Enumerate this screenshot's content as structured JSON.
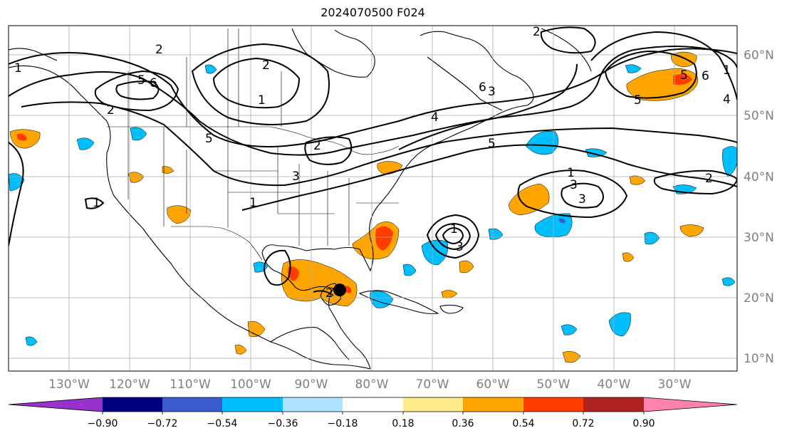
{
  "title": "2024070500 F024",
  "map": {
    "projection": "cylindrical",
    "lon_range": [
      -145,
      -24
    ],
    "lat_range": [
      7.5,
      65
    ],
    "lon_ticks": [
      "130°W",
      "120°W",
      "110°W",
      "100°W",
      "90°W",
      "80°W",
      "70°W",
      "60°W",
      "50°W",
      "40°W",
      "30°W"
    ],
    "lat_ticks": [
      "60°N",
      "50°N",
      "40°N",
      "30°N",
      "20°N",
      "10°N"
    ],
    "grid": true,
    "marker": {
      "type": "dot",
      "lon": -90,
      "lat": 21,
      "color": "#000000"
    },
    "contour_labels": [
      "1",
      "2",
      "5",
      "6",
      "2",
      "1",
      "1",
      "5",
      "2",
      "3",
      "1",
      "6",
      "5",
      "4",
      "2",
      "1",
      "3",
      "1",
      "3",
      "2",
      "2",
      "3",
      "1",
      "2",
      "5",
      "6",
      "5",
      "4",
      "3"
    ]
  },
  "colorbar": {
    "colors": [
      "#9932cc",
      "#000080",
      "#3a5bd0",
      "#00bfff",
      "#aee0ff",
      "#ffffff",
      "#ffea8a",
      "#ffa500",
      "#ff3d00",
      "#b22222",
      "#ff82ab"
    ],
    "tick_labels": [
      "−0.90",
      "−0.72",
      "−0.54",
      "−0.36",
      "−0.18",
      "0.18",
      "0.36",
      "0.54",
      "0.72",
      "0.90"
    ],
    "extend": "both"
  }
}
